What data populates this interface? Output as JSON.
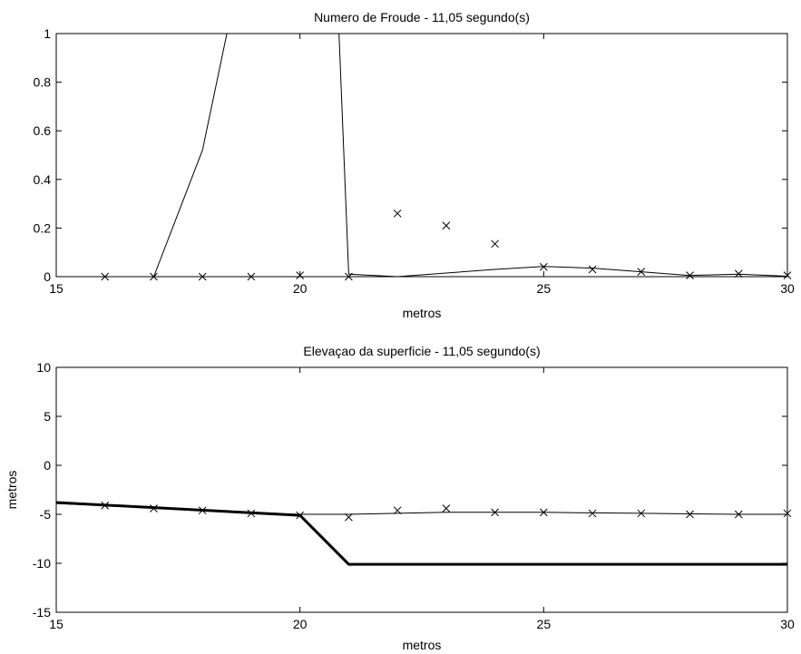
{
  "chart_data": [
    {
      "type": "line",
      "title": "Numero de Froude - 11,05 segundo(s)",
      "xlabel": "metros",
      "ylabel": "",
      "xlim": [
        15,
        30
      ],
      "ylim": [
        0,
        1
      ],
      "xticks": [
        15,
        20,
        25,
        30
      ],
      "yticks": [
        0,
        0.2,
        0.4,
        0.6,
        0.8,
        1
      ],
      "xtick_labels": [
        "15",
        "20",
        "25",
        "30"
      ],
      "ytick_labels": [
        "0",
        "0.2",
        "0.4",
        "0.6",
        "0.8",
        "1"
      ],
      "grid": false,
      "legend": "none",
      "series": [
        {
          "style": "line",
          "color": "#000000",
          "x": [
            17,
            18,
            18.5,
            20.8,
            21,
            22,
            23,
            24,
            25,
            26,
            27,
            28,
            29,
            30
          ],
          "y": [
            0,
            0.52,
            1.0,
            1.0,
            0.01,
            0.0,
            0.015,
            0.03,
            0.042,
            0.035,
            0.02,
            0.005,
            0.01,
            0.002
          ]
        },
        {
          "style": "markers",
          "marker": "x",
          "color": "#000000",
          "x": [
            16,
            17,
            18,
            19,
            20,
            21,
            22,
            23,
            24,
            25,
            26,
            27,
            28,
            29,
            30
          ],
          "y": [
            0,
            0,
            0,
            0,
            0.005,
            0,
            0.26,
            0.21,
            0.135,
            0.04,
            0.03,
            0.02,
            0.005,
            0.012,
            0.005
          ]
        }
      ]
    },
    {
      "type": "line",
      "title": "Elevaçao da superficie - 11,05 segundo(s)",
      "xlabel": "metros",
      "ylabel": "metros",
      "xlim": [
        15,
        30
      ],
      "ylim": [
        -15,
        10
      ],
      "xticks": [
        15,
        20,
        25,
        30
      ],
      "yticks": [
        -15,
        -10,
        -5,
        0,
        5,
        10
      ],
      "xtick_labels": [
        "15",
        "20",
        "25",
        "30"
      ],
      "ytick_labels": [
        "-15",
        "-10",
        "-5",
        "0",
        "5",
        "10"
      ],
      "grid": false,
      "legend": "none",
      "series": [
        {
          "style": "line",
          "color": "#000000",
          "width": 1,
          "x": [
            15,
            16,
            17,
            18,
            19,
            20,
            21,
            22,
            23,
            24,
            25,
            26,
            27,
            28,
            29,
            30
          ],
          "y": [
            -3.9,
            -4.1,
            -4.3,
            -4.6,
            -4.9,
            -5.0,
            -5.0,
            -4.9,
            -4.8,
            -4.8,
            -4.8,
            -4.85,
            -4.9,
            -4.95,
            -5.0,
            -5.0
          ]
        },
        {
          "style": "line",
          "color": "#000000",
          "width": 3,
          "x": [
            15,
            20,
            21,
            30
          ],
          "y": [
            -3.8,
            -5.1,
            -10.1,
            -10.1
          ]
        },
        {
          "style": "markers",
          "marker": "x",
          "color": "#000000",
          "x": [
            16,
            17,
            18,
            19,
            20,
            21,
            22,
            23,
            24,
            25,
            26,
            27,
            28,
            29,
            30
          ],
          "y": [
            -4.1,
            -4.4,
            -4.6,
            -4.9,
            -5.1,
            -5.3,
            -4.6,
            -4.4,
            -4.8,
            -4.8,
            -4.9,
            -4.9,
            -5.0,
            -5.0,
            -4.9
          ]
        }
      ]
    }
  ]
}
